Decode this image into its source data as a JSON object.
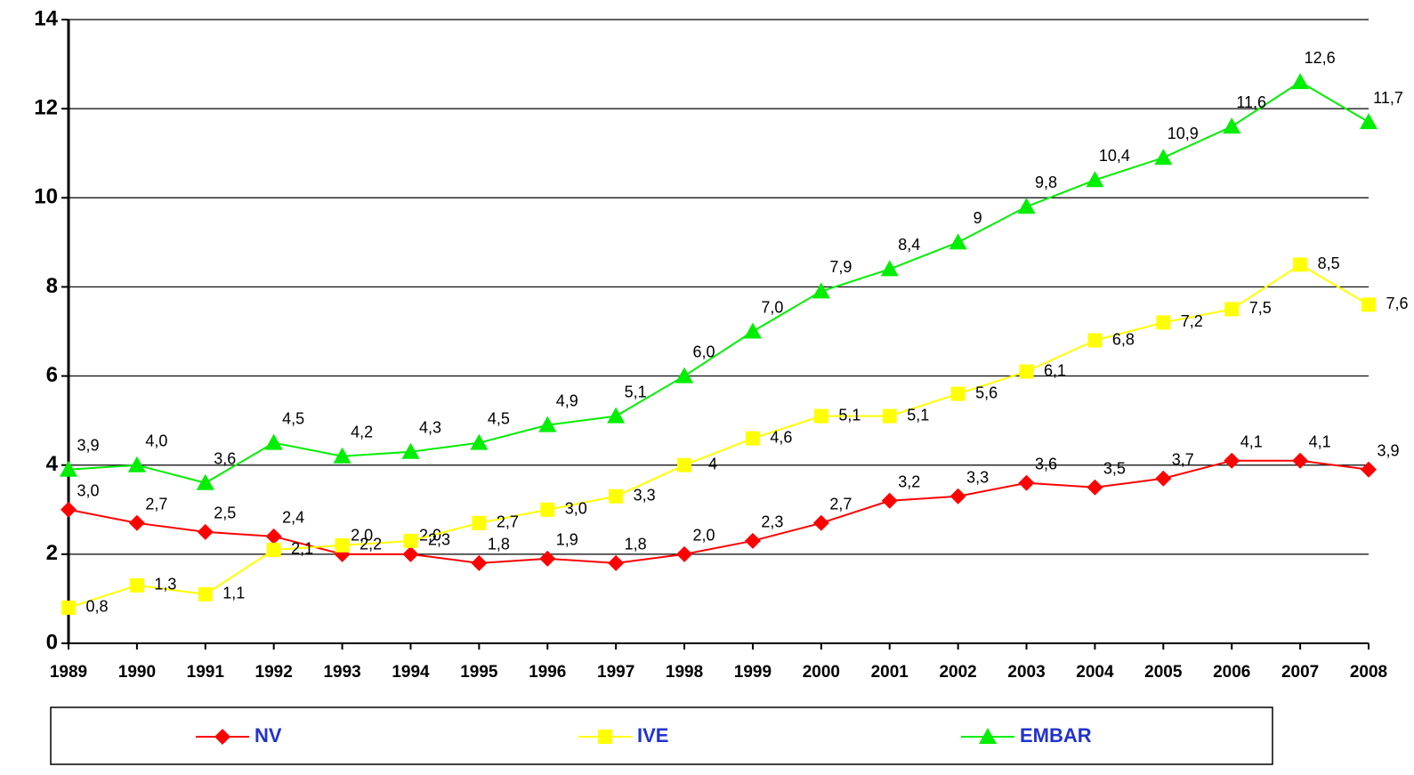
{
  "chart_data": {
    "type": "line",
    "categories": [
      "1989",
      "1990",
      "1991",
      "1992",
      "1993",
      "1994",
      "1995",
      "1996",
      "1997",
      "1998",
      "1999",
      "2000",
      "2001",
      "2002",
      "2003",
      "2004",
      "2005",
      "2006",
      "2007",
      "2008"
    ],
    "ylim": [
      0,
      14
    ],
    "yticks": [
      0,
      2,
      4,
      6,
      8,
      10,
      12,
      14
    ],
    "grid": true,
    "legend": "bottom",
    "series": [
      {
        "name": "NV",
        "color": "#ff0000",
        "marker": "diamond",
        "values": [
          3.0,
          2.7,
          2.5,
          2.4,
          2.0,
          2.0,
          1.8,
          1.9,
          1.8,
          2.0,
          2.3,
          2.7,
          3.2,
          3.3,
          3.6,
          3.5,
          3.7,
          4.1,
          4.1,
          3.9
        ],
        "value_labels": [
          "3,0",
          "2,7",
          "2,5",
          "2,4",
          "2,0",
          "2,0",
          "1,8",
          "1,9",
          "1,8",
          "2,0",
          "2,3",
          "2,7",
          "3,2",
          "3,3",
          "3,6",
          "3,5",
          "3,7",
          "4,1",
          "4,1",
          "3,9"
        ]
      },
      {
        "name": "IVE",
        "color": "#ffff00",
        "marker": "square",
        "values": [
          0.8,
          1.3,
          1.1,
          2.1,
          2.2,
          2.3,
          2.7,
          3.0,
          3.3,
          4,
          4.6,
          5.1,
          5.1,
          5.6,
          6.1,
          6.8,
          7.2,
          7.5,
          8.5,
          7.6
        ],
        "value_labels": [
          "0,8",
          "1,3",
          "1,1",
          "2,1",
          "2,2",
          "2,3",
          "2,7",
          "3,0",
          "3,3",
          "4",
          "4,6",
          "5,1",
          "5,1",
          "5,6",
          "6,1",
          "6,8",
          "7,2",
          "7,5",
          "8,5",
          "7,6"
        ]
      },
      {
        "name": "EMBAR",
        "color": "#00ee00",
        "marker": "triangle",
        "values": [
          3.9,
          4.0,
          3.6,
          4.5,
          4.2,
          4.3,
          4.5,
          4.9,
          5.1,
          6.0,
          7.0,
          7.9,
          8.4,
          9,
          9.8,
          10.4,
          10.9,
          11.6,
          12.6,
          11.7
        ],
        "value_labels": [
          "3,9",
          "4,0",
          "3,6",
          "4,5",
          "4,2",
          "4,3",
          "4,5",
          "4,9",
          "5,1",
          "6,0",
          "7,0",
          "7,9",
          "8,4",
          "9",
          "9,8",
          "10,4",
          "10,9",
          "11,6",
          "12,6",
          "11,7"
        ]
      }
    ]
  }
}
